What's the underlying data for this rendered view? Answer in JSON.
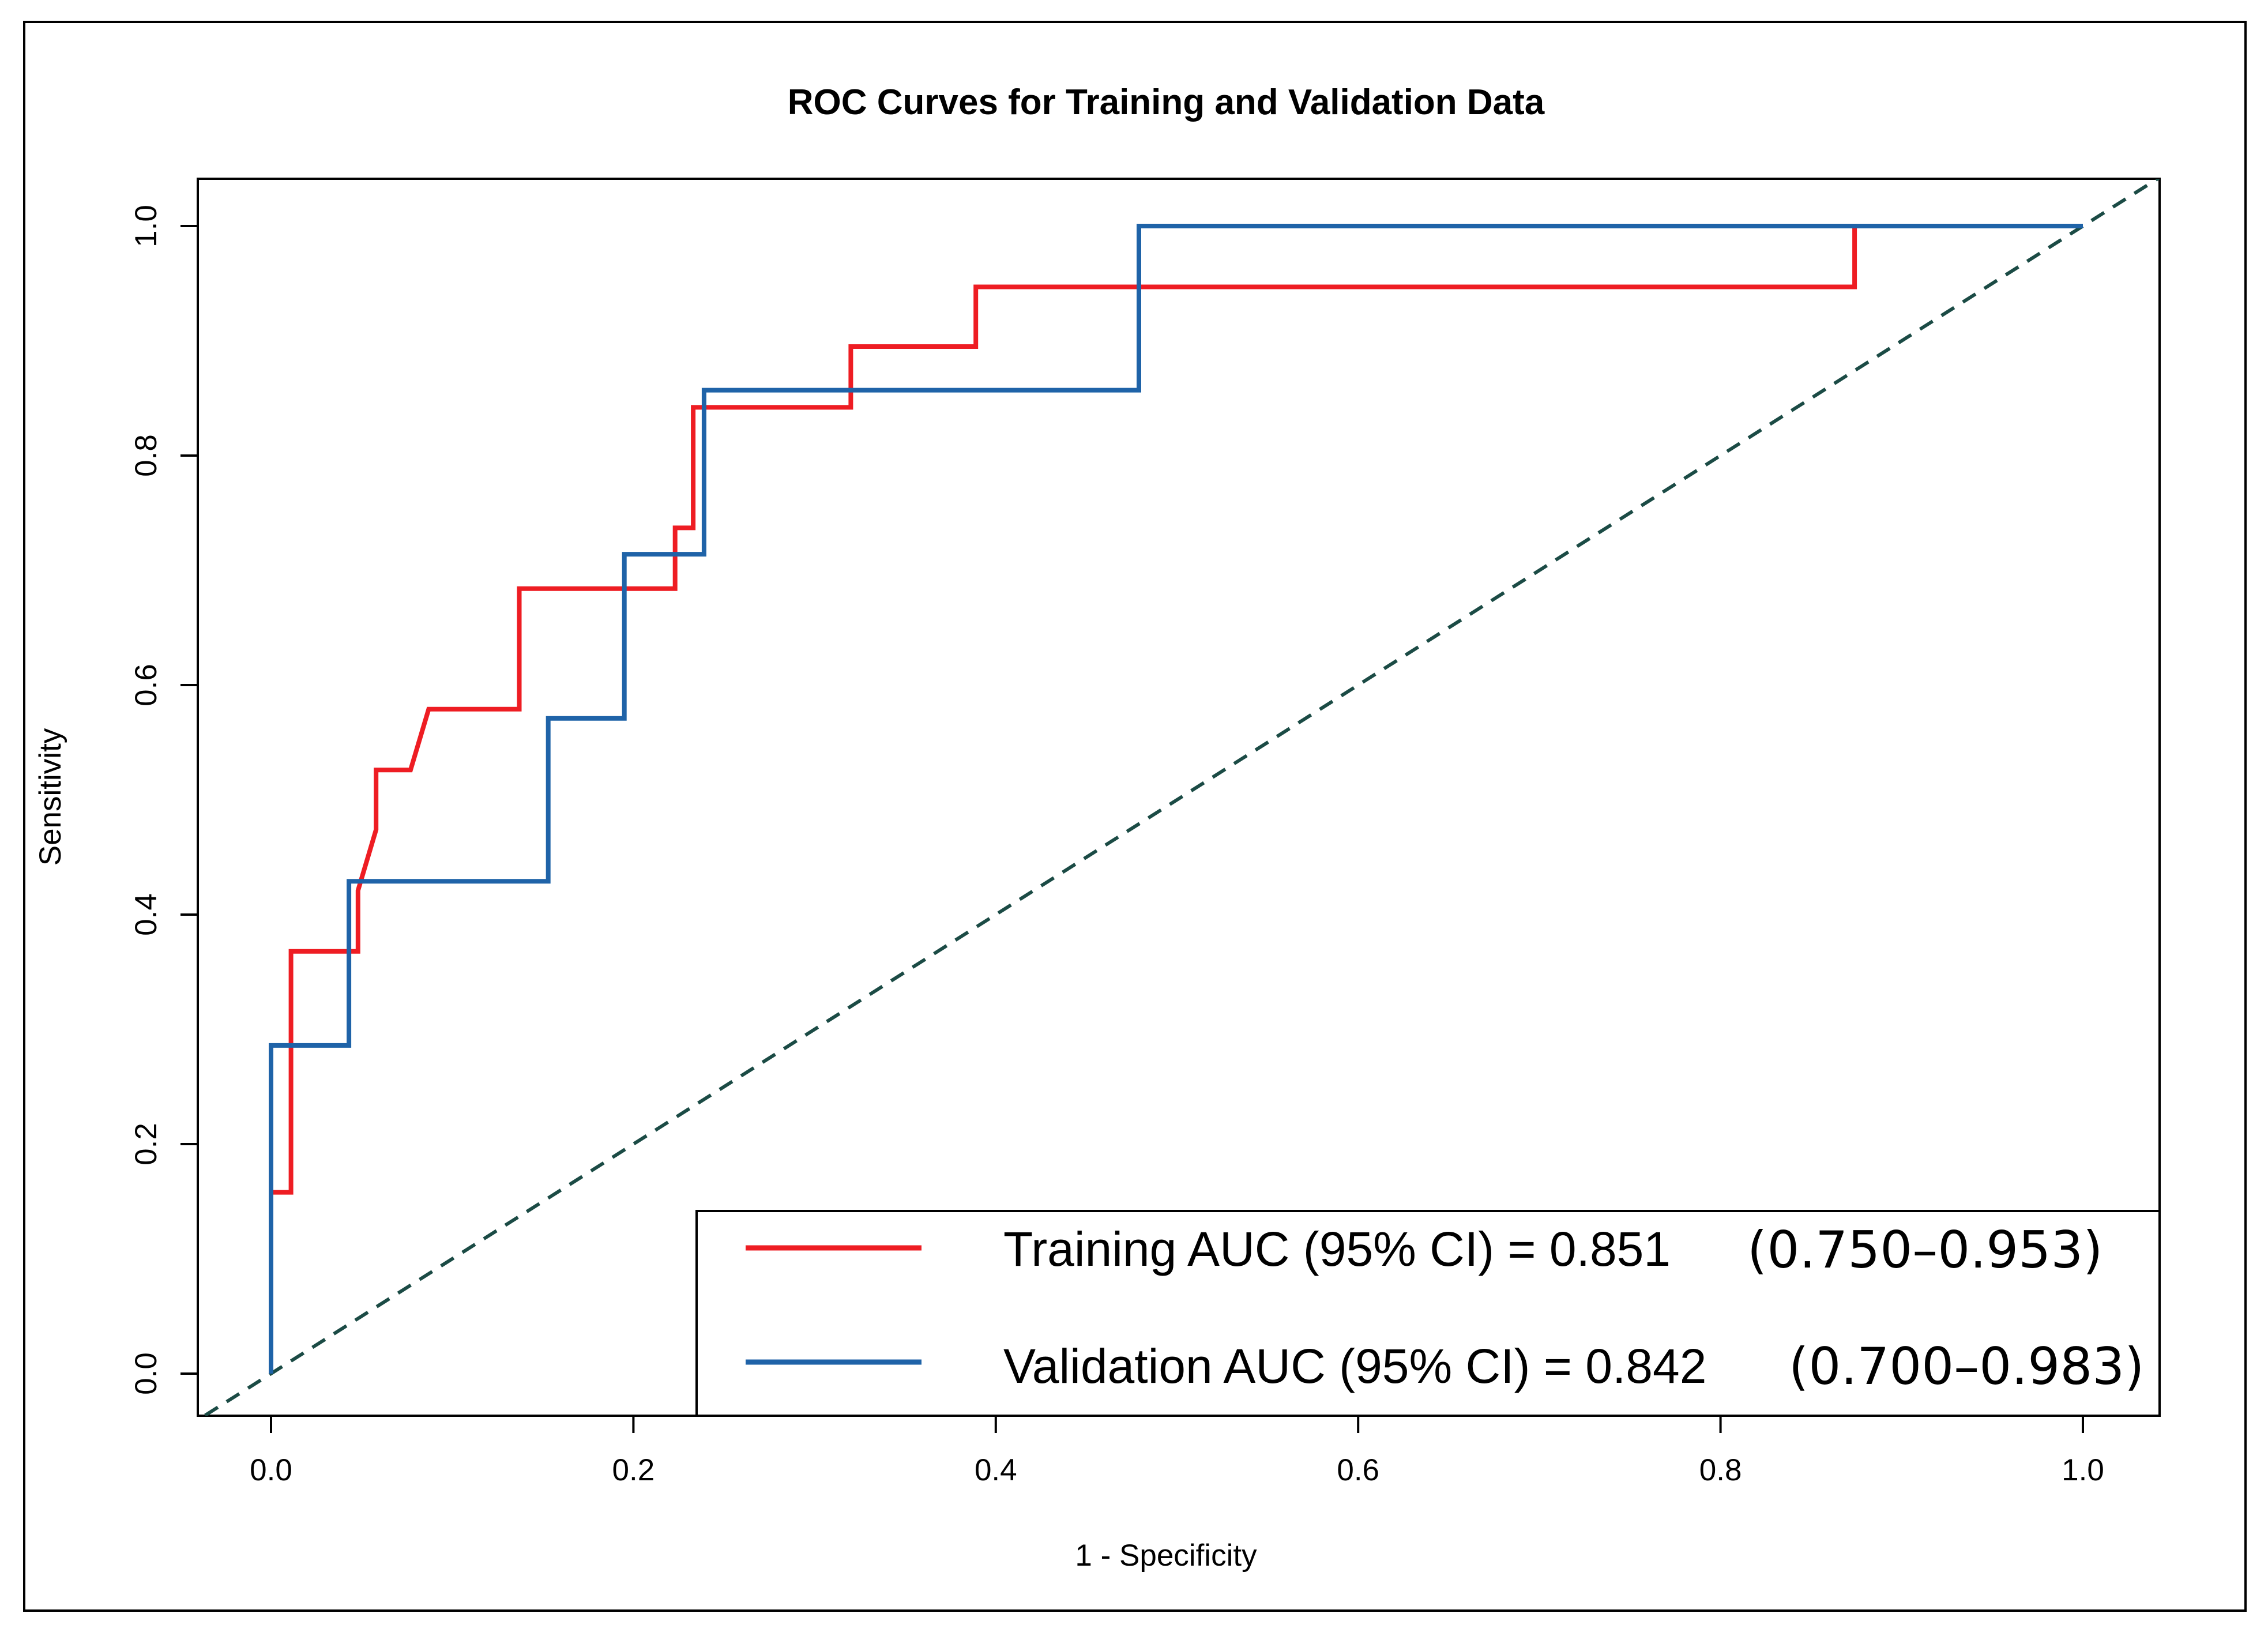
{
  "chart_data": {
    "type": "line",
    "title": "ROC Curves for Training and Validation Data",
    "xlabel": "1 - Specificity",
    "ylabel": "Sensitivity",
    "xlim": [
      0.0,
      1.0
    ],
    "ylim": [
      0.0,
      1.0
    ],
    "x_ticks": [
      0.0,
      0.2,
      0.4,
      0.6,
      0.8,
      1.0
    ],
    "x_tick_labels": [
      "0.0",
      "0.2",
      "0.4",
      "0.6",
      "0.8",
      "1.0"
    ],
    "y_ticks": [
      0.0,
      0.2,
      0.4,
      0.6,
      0.8,
      1.0
    ],
    "y_tick_labels": [
      "0.0",
      "0.2",
      "0.4",
      "0.6",
      "0.8",
      "1.0"
    ],
    "grid": false,
    "legend_position": "bottom-right",
    "reference_line": {
      "name": "chance",
      "x": [
        0.0,
        1.0
      ],
      "y": [
        0.0,
        1.0
      ],
      "style": "dashed",
      "color": "#1b4b45"
    },
    "series": [
      {
        "name": "Training",
        "legend_label": "Training AUC (95% CI) = 0.851",
        "ci_label": "(0.750–0.953)",
        "auc": 0.851,
        "ci": [
          0.75,
          0.953
        ],
        "color": "#ee1d23",
        "x": [
          0.0,
          0.0,
          0.011,
          0.011,
          0.048,
          0.048,
          0.058,
          0.058,
          0.077,
          0.087,
          0.137,
          0.137,
          0.223,
          0.223,
          0.233,
          0.233,
          0.32,
          0.32,
          0.389,
          0.389,
          0.874,
          0.874,
          1.0
        ],
        "y": [
          0.0,
          0.158,
          0.158,
          0.368,
          0.368,
          0.421,
          0.474,
          0.526,
          0.526,
          0.579,
          0.579,
          0.684,
          0.684,
          0.737,
          0.737,
          0.842,
          0.842,
          0.895,
          0.895,
          0.947,
          0.947,
          1.0,
          1.0
        ]
      },
      {
        "name": "Validation",
        "legend_label": "Validation AUC (95% CI) = 0.842",
        "ci_label": "(0.700–0.983)",
        "auc": 0.842,
        "ci": [
          0.7,
          0.983
        ],
        "color": "#1f63a8",
        "x": [
          0.0,
          0.0,
          0.043,
          0.043,
          0.153,
          0.153,
          0.195,
          0.195,
          0.239,
          0.239,
          0.479,
          0.479,
          1.0
        ],
        "y": [
          0.0,
          0.286,
          0.286,
          0.429,
          0.429,
          0.571,
          0.571,
          0.714,
          0.714,
          0.857,
          0.857,
          1.0,
          1.0
        ]
      }
    ]
  }
}
